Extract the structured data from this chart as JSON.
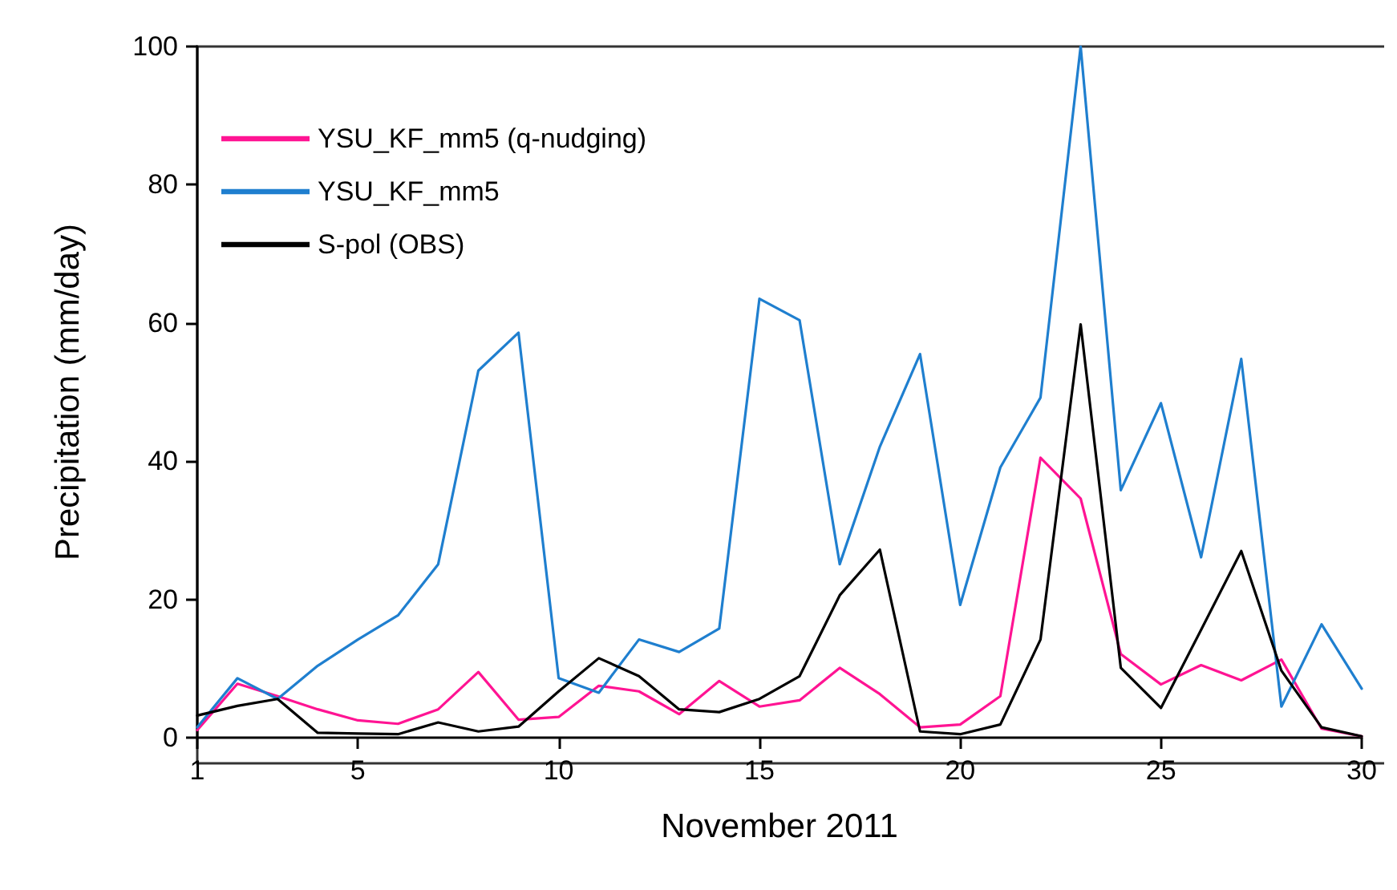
{
  "chart_data": {
    "type": "line",
    "xlabel": "November 2011",
    "ylabel": "Precipitation (mm/day)",
    "x": [
      1,
      2,
      3,
      4,
      5,
      6,
      7,
      8,
      9,
      10,
      11,
      12,
      13,
      14,
      15,
      16,
      17,
      18,
      19,
      20,
      21,
      22,
      23,
      24,
      25,
      26,
      27,
      28,
      29,
      30
    ],
    "xlim": [
      1,
      30
    ],
    "xticks": [
      1,
      5,
      10,
      15,
      20,
      25,
      30
    ],
    "ylim": [
      0,
      100
    ],
    "yticks": [
      0,
      20,
      40,
      60,
      80,
      100
    ],
    "grid": false,
    "legend": "top left",
    "marker": "none",
    "line_style": "solid",
    "series": [
      {
        "name": "YSU_KF_mm5 (q-nudging)",
        "color": "#ff1493",
        "values": [
          1.1,
          7.8,
          6,
          4.1,
          2.5,
          2,
          4.1,
          9.5,
          2.6,
          3,
          7.5,
          6.7,
          3.4,
          8.2,
          4.5,
          5.4,
          10.1,
          6.3,
          1.5,
          1.9,
          6,
          40.5,
          34.6,
          12.1,
          7.7,
          10.5,
          8.3,
          11.3,
          1.3,
          0.2
        ]
      },
      {
        "name": "YSU_KF_mm5",
        "color": "#1f7fcf",
        "values": [
          1.5,
          8.6,
          5.6,
          10.4,
          14.2,
          17.7,
          25.1,
          53.1,
          58.6,
          8.6,
          6.5,
          14.2,
          12.4,
          15.8,
          63.5,
          60.4,
          25.1,
          42.1,
          55.5,
          19.2,
          39.1,
          49.2,
          100,
          35.8,
          48.4,
          26.1,
          54.8,
          4.5,
          16.4,
          7.1
        ]
      },
      {
        "name": "S-pol (OBS)",
        "color": "#000000",
        "values": [
          3.2,
          4.6,
          5.6,
          0.7,
          0.6,
          0.5,
          2.2,
          0.9,
          1.6,
          6.7,
          11.5,
          8.9,
          4.1,
          3.7,
          5.6,
          8.9,
          20.6,
          27.2,
          0.9,
          0.5,
          1.9,
          14.2,
          59.8,
          10.1,
          4.3,
          15.6,
          27,
          9.7,
          1.5,
          0.2
        ]
      }
    ]
  }
}
